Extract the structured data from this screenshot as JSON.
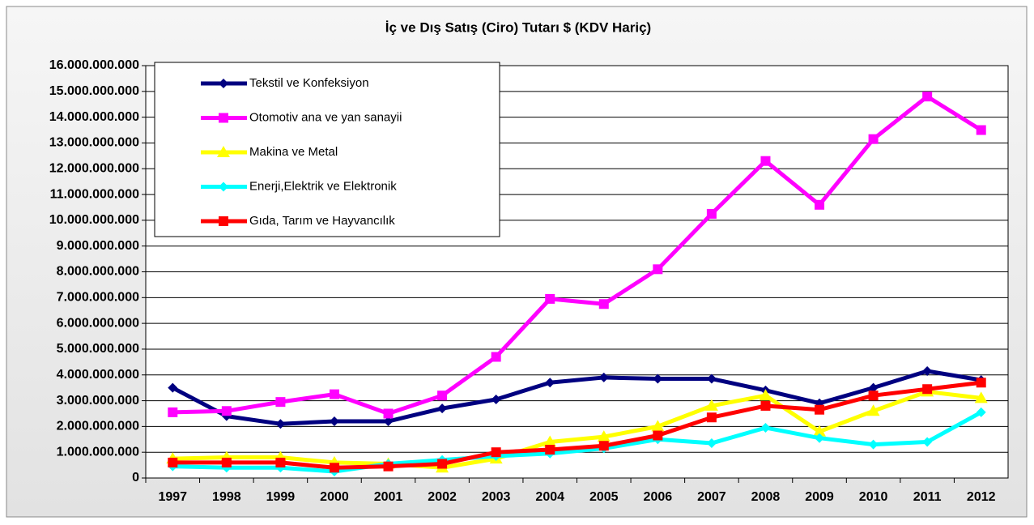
{
  "chart_data": {
    "type": "line",
    "title": "İç ve Dış Satış (Ciro) Tutarı $ (KDV Hariç)",
    "categories": [
      "1997",
      "1998",
      "1999",
      "2000",
      "2001",
      "2002",
      "2003",
      "2004",
      "2005",
      "2006",
      "2007",
      "2008",
      "2009",
      "2010",
      "2011",
      "2012"
    ],
    "series": [
      {
        "name": "Tekstil ve Konfeksiyon",
        "color": "#000080",
        "marker": "diamond",
        "values": [
          3500000000,
          2400000000,
          2100000000,
          2200000000,
          2200000000,
          2700000000,
          3050000000,
          3700000000,
          3900000000,
          3850000000,
          3850000000,
          3400000000,
          2900000000,
          3500000000,
          4150000000,
          3800000000
        ]
      },
      {
        "name": "Otomotiv ana ve yan sanayii",
        "color": "#ff00ff",
        "marker": "square",
        "values": [
          2550000000,
          2600000000,
          2950000000,
          3250000000,
          2500000000,
          3200000000,
          4700000000,
          6950000000,
          6750000000,
          8100000000,
          10250000000,
          12300000000,
          10600000000,
          13150000000,
          14800000000,
          13500000000
        ]
      },
      {
        "name": "Makina ve Metal",
        "color": "#ffff00",
        "marker": "triangle",
        "values": [
          750000000,
          800000000,
          800000000,
          600000000,
          550000000,
          400000000,
          750000000,
          1400000000,
          1600000000,
          2000000000,
          2800000000,
          3200000000,
          1800000000,
          2600000000,
          3350000000,
          3100000000
        ]
      },
      {
        "name": "Enerji,Elektrik ve Elektronik",
        "color": "#00ffff",
        "marker": "diamond",
        "values": [
          450000000,
          400000000,
          400000000,
          250000000,
          550000000,
          700000000,
          850000000,
          950000000,
          1150000000,
          1500000000,
          1350000000,
          1950000000,
          1550000000,
          1300000000,
          1400000000,
          2550000000
        ]
      },
      {
        "name": "Gıda, Tarım ve Hayvancılık",
        "color": "#ff0000",
        "marker": "square",
        "values": [
          600000000,
          600000000,
          600000000,
          400000000,
          450000000,
          550000000,
          1000000000,
          1100000000,
          1250000000,
          1650000000,
          2350000000,
          2800000000,
          2650000000,
          3200000000,
          3450000000,
          3700000000
        ]
      }
    ],
    "ylim": [
      0,
      16000000000
    ],
    "yticks": [
      {
        "value": 0,
        "label": "0"
      },
      {
        "value": 1000000000,
        "label": "1.000.000.000"
      },
      {
        "value": 2000000000,
        "label": "2.000.000.000"
      },
      {
        "value": 3000000000,
        "label": "3.000.000.000"
      },
      {
        "value": 4000000000,
        "label": "4.000.000.000"
      },
      {
        "value": 5000000000,
        "label": "5.000.000.000"
      },
      {
        "value": 6000000000,
        "label": "6.000.000.000"
      },
      {
        "value": 7000000000,
        "label": "7.000.000.000"
      },
      {
        "value": 8000000000,
        "label": "8.000.000.000"
      },
      {
        "value": 9000000000,
        "label": "9.000.000.000"
      },
      {
        "value": 10000000000,
        "label": "10.000.000.000"
      },
      {
        "value": 11000000000,
        "label": "11.000.000.000"
      },
      {
        "value": 12000000000,
        "label": "12.000.000.000"
      },
      {
        "value": 13000000000,
        "label": "13.000.000.000"
      },
      {
        "value": 14000000000,
        "label": "14.000.000.000"
      },
      {
        "value": 15000000000,
        "label": "15.000.000.000"
      },
      {
        "value": 16000000000,
        "label": "16.000.000.000"
      }
    ],
    "grid": true,
    "legend": "upper left"
  }
}
